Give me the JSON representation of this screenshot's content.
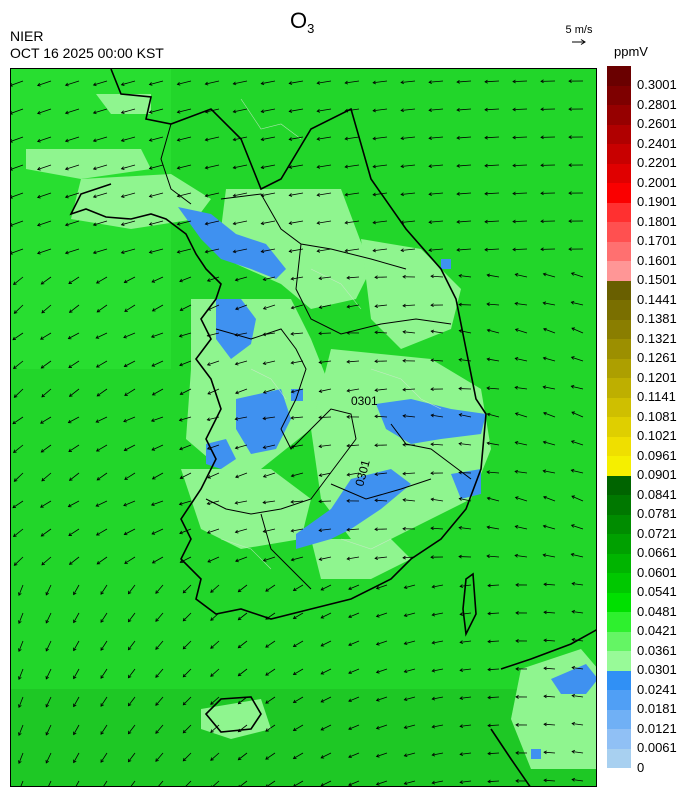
{
  "header": {
    "org": "NIER",
    "timestamp": "OCT 16 2025 00:00 KST",
    "title_main": "O",
    "title_sub": "3"
  },
  "wind_reference": {
    "label": "5 m/s"
  },
  "colorbar": {
    "unit": "ppmV",
    "labels": [
      "0.3001",
      "0.2801",
      "0.2601",
      "0.2401",
      "0.2201",
      "0.2001",
      "0.1901",
      "0.1801",
      "0.1701",
      "0.1601",
      "0.1501",
      "0.1441",
      "0.1381",
      "0.1321",
      "0.1261",
      "0.1201",
      "0.1141",
      "0.1081",
      "0.1021",
      "0.0961",
      "0.0901",
      "0.0841",
      "0.0781",
      "0.0721",
      "0.0661",
      "0.0601",
      "0.0541",
      "0.0481",
      "0.0421",
      "0.0361",
      "0.0301",
      "0.0241",
      "0.0181",
      "0.0121",
      "0.0061",
      "0"
    ],
    "colors": [
      "#6a0000",
      "#7e0000",
      "#960000",
      "#b00000",
      "#c80000",
      "#e00000",
      "#fa0000",
      "#ff3030",
      "#ff5050",
      "#ff7070",
      "#ff9696",
      "#695f00",
      "#7a6f00",
      "#8a7e00",
      "#9c8f00",
      "#ad9f00",
      "#beaf00",
      "#cfbf00",
      "#dfcf00",
      "#efdf00",
      "#f5ef00",
      "#006400",
      "#007800",
      "#008c00",
      "#00a000",
      "#00b400",
      "#00c800",
      "#00e000",
      "#2ef02e",
      "#64f564",
      "#98fa98",
      "#3090f5",
      "#509ff5",
      "#70b0f5",
      "#90c0f5",
      "#a8d0f0"
    ]
  },
  "map": {
    "contour_labels": [
      "0301",
      "0301"
    ]
  }
}
